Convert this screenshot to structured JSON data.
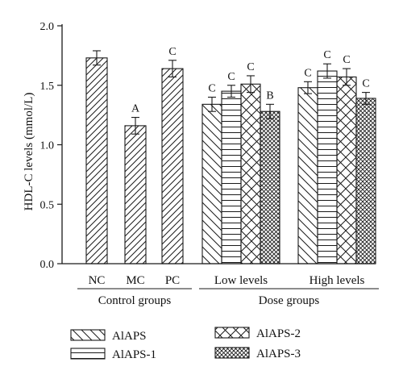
{
  "chart_data": {
    "type": "bar",
    "ylabel": "HDL-C levels (mmol/L)",
    "ylim": [
      0.0,
      2.0
    ],
    "yticks": [
      "0.0",
      "0.5",
      "1.0",
      "1.5",
      "2.0"
    ],
    "grid": false,
    "legend_position": "bottom",
    "groups": [
      {
        "label": "Control groups",
        "categories": [
          {
            "label": "NC",
            "bars": [
              {
                "series": "",
                "value": 1.73,
                "error": 0.06,
                "sig": ""
              }
            ]
          },
          {
            "label": "MC",
            "bars": [
              {
                "series": "",
                "value": 1.16,
                "error": 0.07,
                "sig": "A"
              }
            ]
          },
          {
            "label": "PC",
            "bars": [
              {
                "series": "",
                "value": 1.64,
                "error": 0.07,
                "sig": "C"
              }
            ]
          }
        ]
      },
      {
        "label": "Dose groups",
        "categories": [
          {
            "label": "Low levels",
            "bars": [
              {
                "series": "AlAPS",
                "value": 1.34,
                "error": 0.06,
                "sig": "C"
              },
              {
                "series": "AlAPS-1",
                "value": 1.45,
                "error": 0.05,
                "sig": "C"
              },
              {
                "series": "AlAPS-2",
                "value": 1.51,
                "error": 0.07,
                "sig": "C"
              },
              {
                "series": "AlAPS-3",
                "value": 1.28,
                "error": 0.06,
                "sig": "B"
              }
            ]
          },
          {
            "label": "High levels",
            "bars": [
              {
                "series": "AlAPS",
                "value": 1.48,
                "error": 0.05,
                "sig": "C"
              },
              {
                "series": "AlAPS-1",
                "value": 1.62,
                "error": 0.06,
                "sig": "C"
              },
              {
                "series": "AlAPS-2",
                "value": 1.57,
                "error": 0.07,
                "sig": "C"
              },
              {
                "series": "AlAPS-3",
                "value": 1.39,
                "error": 0.05,
                "sig": "C"
              }
            ]
          }
        ]
      }
    ],
    "series": [
      {
        "name": "AlAPS",
        "pattern": "back-diagonal"
      },
      {
        "name": "AlAPS-1",
        "pattern": "horizontal-stripes"
      },
      {
        "name": "AlAPS-2",
        "pattern": "large-crosshatch"
      },
      {
        "name": "AlAPS-3",
        "pattern": "dense-crosshatch"
      }
    ],
    "control_pattern": "forward-diagonal",
    "colors": {
      "ink": "#1a1a1a",
      "background": "#ffffff"
    }
  }
}
